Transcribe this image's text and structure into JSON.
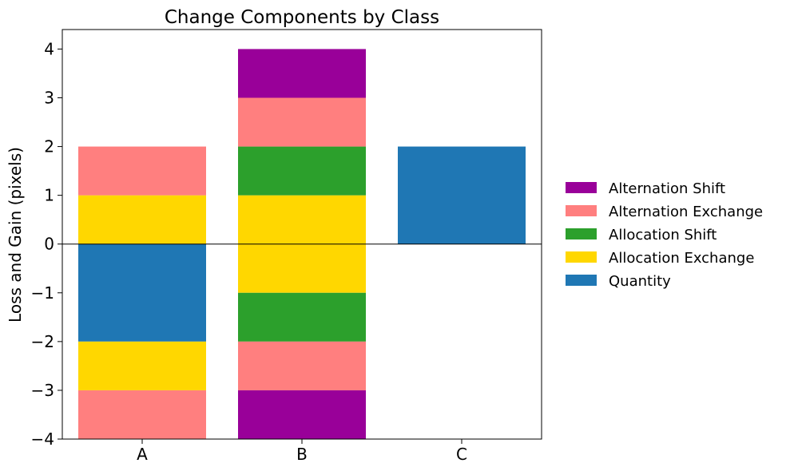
{
  "chart_data": {
    "type": "bar",
    "stacked": true,
    "title": "Change Components by Class",
    "xlabel": "",
    "ylabel": "Loss and Gain (pixels)",
    "ylim": [
      -4,
      4.4
    ],
    "yticks": [
      -4,
      -3,
      -2,
      -1,
      0,
      1,
      2,
      3,
      4
    ],
    "ytick_labels": [
      "−4",
      "−3",
      "−2",
      "−1",
      "0",
      "1",
      "2",
      "3",
      "4"
    ],
    "categories": [
      "A",
      "B",
      "C"
    ],
    "zero_line": true,
    "grid": false,
    "legend_position": "right",
    "series": [
      {
        "name": "Quantity",
        "color": "#1f77b4",
        "values": [
          -2,
          0,
          2
        ]
      },
      {
        "name": "Allocation Exchange",
        "color": "#ffd700",
        "gains": [
          1,
          1,
          0
        ],
        "losses": [
          -1,
          -1,
          0
        ]
      },
      {
        "name": "Allocation Shift",
        "color": "#2ca02c",
        "gains": [
          0,
          1,
          0
        ],
        "losses": [
          0,
          -1,
          0
        ]
      },
      {
        "name": "Alternation Exchange",
        "color": "#ff7f7f",
        "gains": [
          1,
          1,
          0
        ],
        "losses": [
          -1,
          -1,
          0
        ]
      },
      {
        "name": "Alternation Shift",
        "color": "#990099",
        "gains": [
          0,
          1,
          0
        ],
        "losses": [
          0,
          -1,
          0
        ]
      }
    ],
    "legend_order": [
      "Alternation Shift",
      "Alternation Exchange",
      "Allocation Shift",
      "Allocation Exchange",
      "Quantity"
    ]
  }
}
